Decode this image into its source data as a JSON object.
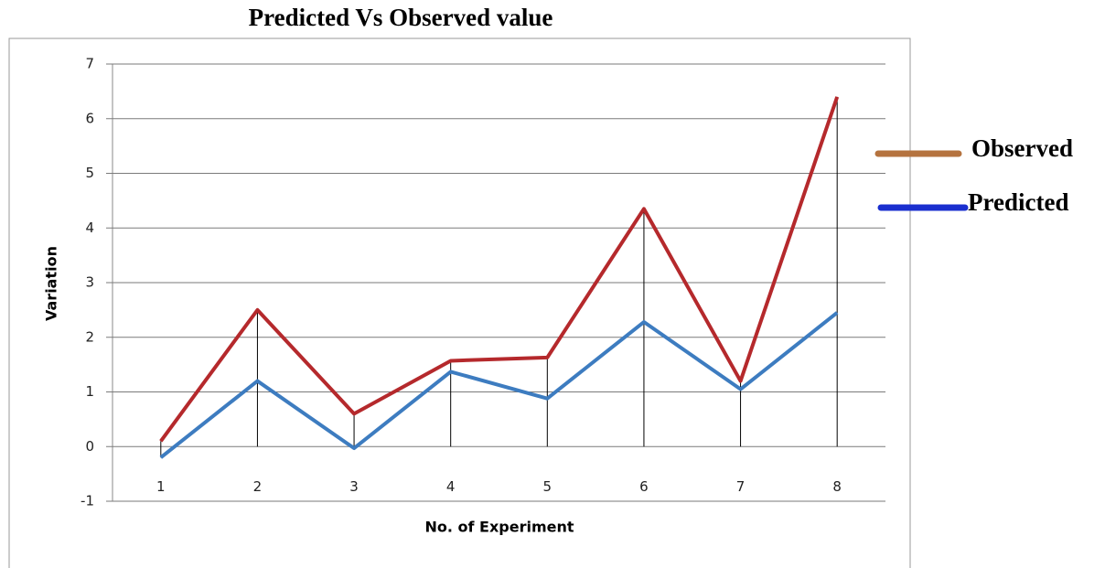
{
  "chart_data": {
    "type": "line",
    "title": "Predicted Vs Observed value",
    "xlabel": "No. of Experiment",
    "ylabel": "Variation",
    "x": [
      1,
      2,
      3,
      4,
      5,
      6,
      7,
      8
    ],
    "xlim": [
      0.5,
      8.5
    ],
    "xticks": [
      1,
      2,
      3,
      4,
      5,
      6,
      7,
      8
    ],
    "ylim": [
      -1,
      7
    ],
    "yticks": [
      -1,
      0,
      1,
      2,
      3,
      4,
      5,
      6,
      7
    ],
    "grid": true,
    "legend": "right",
    "series": [
      {
        "name": "Observed",
        "color": "#b5292c",
        "legend_color": "#b5733f",
        "values": [
          0.1,
          2.5,
          0.6,
          1.57,
          1.63,
          4.35,
          1.2,
          6.4
        ]
      },
      {
        "name": "Predicted",
        "color": "#3d7cc0",
        "legend_color": "#1a2fcf",
        "values": [
          -0.2,
          1.2,
          -0.03,
          1.37,
          0.88,
          2.28,
          1.05,
          2.45
        ]
      }
    ]
  }
}
